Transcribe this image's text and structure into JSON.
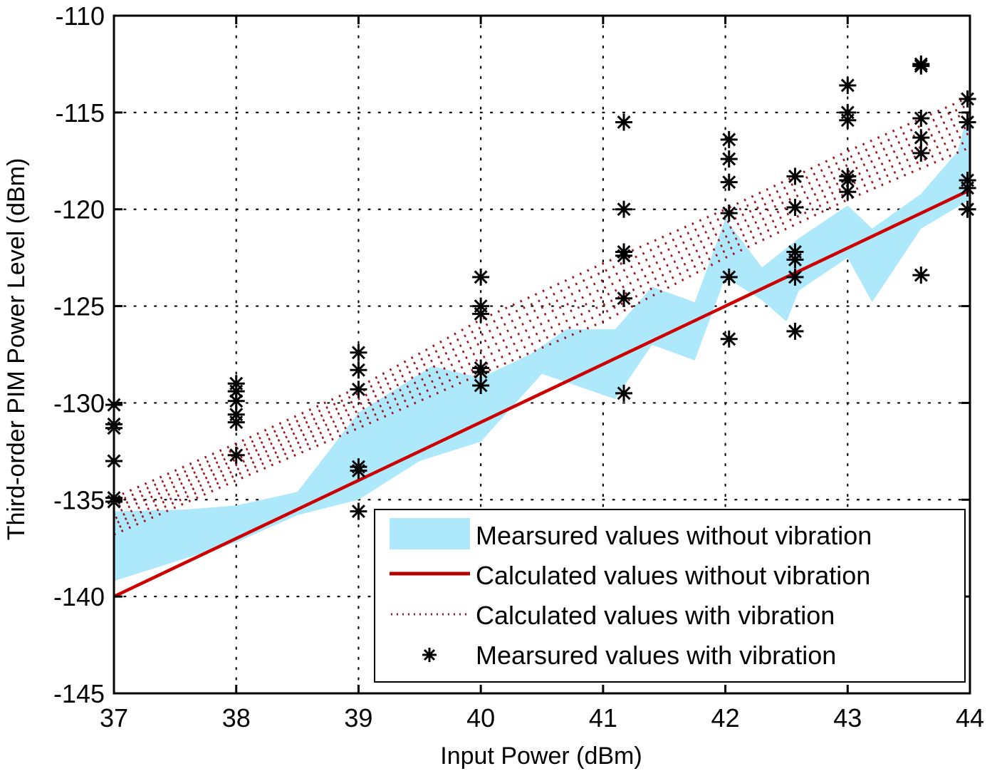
{
  "chart_data": {
    "type": "line",
    "title": "",
    "xlabel": "Input Power (dBm)",
    "ylabel": "Third-order PIM Power Level (dBm)",
    "xlim": [
      37,
      44
    ],
    "ylim": [
      -145,
      -110
    ],
    "xticks": [
      37,
      38,
      39,
      40,
      41,
      42,
      43,
      44
    ],
    "yticks": [
      -110,
      -115,
      -120,
      -125,
      -130,
      -135,
      -140,
      -145
    ],
    "xtick_labels": [
      "37",
      "38",
      "39",
      "40",
      "41",
      "42",
      "43",
      "44"
    ],
    "ytick_labels": [
      "-110",
      "-115",
      "-120",
      "-125",
      "-130",
      "-135",
      "-140",
      "-145"
    ],
    "grid": true,
    "legend_position": "bottom-right",
    "colors": {
      "measured_band": "#aee8fb",
      "calculated_line": "#cc0000",
      "calculated_vibration": "#a0141e",
      "markers": "#000000"
    },
    "series": [
      {
        "name": "Mearsured values without vibration",
        "kind": "band",
        "upper": [
          [
            37,
            -135.6
          ],
          [
            37.6,
            -135.5
          ],
          [
            38,
            -135.3
          ],
          [
            38.5,
            -134.6
          ],
          [
            39,
            -130.5
          ],
          [
            39.6,
            -128.1
          ],
          [
            40,
            -128.7
          ],
          [
            40.4,
            -127.5
          ],
          [
            40.7,
            -126.2
          ],
          [
            41.1,
            -126.2
          ],
          [
            41.4,
            -124.0
          ],
          [
            41.75,
            -124.8
          ],
          [
            42.0,
            -120.5
          ],
          [
            42.3,
            -123.0
          ],
          [
            42.6,
            -121.5
          ],
          [
            43.0,
            -119.8
          ],
          [
            43.2,
            -121.0
          ],
          [
            43.6,
            -119.2
          ],
          [
            43.9,
            -117.0
          ],
          [
            44.0,
            -114.6
          ]
        ],
        "lower": [
          [
            37,
            -139.2
          ],
          [
            38,
            -137.2
          ],
          [
            38.5,
            -135.8
          ],
          [
            39,
            -135.0
          ],
          [
            39.5,
            -133.0
          ],
          [
            40,
            -132.0
          ],
          [
            40.5,
            -128.5
          ],
          [
            41.1,
            -129.8
          ],
          [
            41.4,
            -127.0
          ],
          [
            41.75,
            -127.8
          ],
          [
            42.0,
            -123.5
          ],
          [
            42.3,
            -124.7
          ],
          [
            42.5,
            -125.8
          ],
          [
            42.6,
            -124.2
          ],
          [
            43.0,
            -122.5
          ],
          [
            43.2,
            -124.8
          ],
          [
            43.6,
            -121.0
          ],
          [
            44.0,
            -119.5
          ]
        ]
      },
      {
        "name": "Calculated values without vibration",
        "kind": "line",
        "x": [
          37,
          44
        ],
        "y": [
          -140,
          -119
        ]
      },
      {
        "name": "Calculated values with vibration",
        "kind": "dotted-band",
        "x": [
          37,
          38,
          39,
          40,
          41,
          42,
          43,
          44
        ],
        "upper": [
          -134.9,
          -132.1,
          -129.2,
          -125.7,
          -122.8,
          -120.0,
          -117.0,
          -114.2
        ],
        "lower": [
          -136.8,
          -134.0,
          -131.3,
          -128.5,
          -125.8,
          -122.5,
          -119.5,
          -116.8
        ]
      },
      {
        "name": "Mearsured values with vibration",
        "kind": "scatter",
        "points": [
          [
            37,
            -130.1
          ],
          [
            37,
            -131.1
          ],
          [
            37,
            -131.3
          ],
          [
            37,
            -133.0
          ],
          [
            37,
            -134.9
          ],
          [
            37,
            -135.1
          ],
          [
            38,
            -129.0
          ],
          [
            38,
            -129.4
          ],
          [
            38,
            -129.9
          ],
          [
            38,
            -130.6
          ],
          [
            38,
            -131.0
          ],
          [
            38,
            -132.7
          ],
          [
            39,
            -127.4
          ],
          [
            39,
            -128.3
          ],
          [
            39,
            -129.3
          ],
          [
            39,
            -133.3
          ],
          [
            39,
            -133.5
          ],
          [
            39,
            -135.6
          ],
          [
            40,
            -123.5
          ],
          [
            40,
            -125.0
          ],
          [
            40,
            -125.4
          ],
          [
            40,
            -128.2
          ],
          [
            40,
            -128.4
          ],
          [
            40,
            -129.1
          ],
          [
            41.17,
            -115.5
          ],
          [
            41.17,
            -120.0
          ],
          [
            41.17,
            -122.2
          ],
          [
            41.17,
            -122.4
          ],
          [
            41.17,
            -124.6
          ],
          [
            41.17,
            -129.5
          ],
          [
            42.03,
            -116.4
          ],
          [
            42.03,
            -117.4
          ],
          [
            42.03,
            -118.6
          ],
          [
            42.03,
            -120.2
          ],
          [
            42.03,
            -123.5
          ],
          [
            42.03,
            -126.7
          ],
          [
            42.57,
            -118.3
          ],
          [
            42.57,
            -119.9
          ],
          [
            42.57,
            -122.2
          ],
          [
            42.57,
            -122.6
          ],
          [
            42.57,
            -123.5
          ],
          [
            42.57,
            -126.3
          ],
          [
            43,
            -113.6
          ],
          [
            43,
            -115.0
          ],
          [
            43,
            -115.4
          ],
          [
            43,
            -118.3
          ],
          [
            43,
            -118.5
          ],
          [
            43,
            -119.1
          ],
          [
            43.6,
            -112.5
          ],
          [
            43.6,
            -112.6
          ],
          [
            43.6,
            -115.3
          ],
          [
            43.6,
            -116.3
          ],
          [
            43.6,
            -117.1
          ],
          [
            43.6,
            -123.4
          ],
          [
            43.98,
            -114.3
          ],
          [
            43.98,
            -115.5
          ],
          [
            43.98,
            -118.5
          ],
          [
            43.98,
            -118.9
          ],
          [
            43.98,
            -120.0
          ]
        ]
      }
    ],
    "legend": [
      "Mearsured values without vibration",
      "Calculated values without vibration",
      "Calculated values with vibration",
      "Mearsured values with vibration"
    ]
  }
}
